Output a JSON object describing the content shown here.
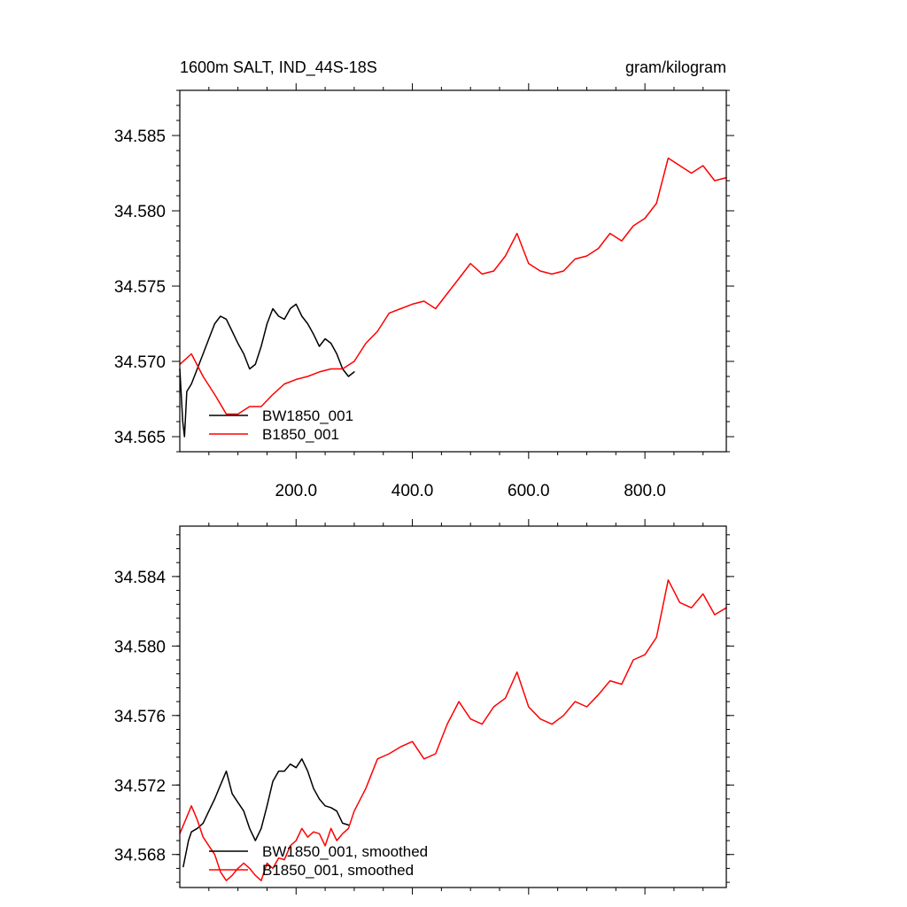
{
  "chart_data": [
    {
      "type": "line",
      "title_left": "1600m SALT, IND_44S-18S",
      "title_right": "gram/kilogram",
      "xlabel": "",
      "ylabel": "",
      "xlim": [
        0,
        940
      ],
      "ylim": [
        34.564,
        34.588
      ],
      "x_ticks": [
        200,
        400,
        600,
        800
      ],
      "x_tick_labels": [
        "200.0",
        "400.0",
        "600.0",
        "800.0"
      ],
      "y_ticks": [
        34.565,
        34.57,
        34.575,
        34.58,
        34.585
      ],
      "y_tick_labels": [
        "34.565",
        "34.570",
        "34.575",
        "34.580",
        "34.585"
      ],
      "grid": false,
      "legend_position": "bottom-left",
      "series": [
        {
          "name": "BW1850_001",
          "color": "#000000",
          "x": [
            0,
            5,
            8,
            12,
            20,
            30,
            40,
            50,
            60,
            70,
            80,
            90,
            100,
            110,
            120,
            130,
            140,
            150,
            160,
            170,
            180,
            190,
            200,
            210,
            220,
            230,
            240,
            250,
            260,
            270,
            280,
            290,
            300
          ],
          "y": [
            34.5695,
            34.566,
            34.565,
            34.568,
            34.5685,
            34.5695,
            34.5705,
            34.5715,
            34.5725,
            34.573,
            34.5728,
            34.572,
            34.5712,
            34.5705,
            34.5695,
            34.5698,
            34.571,
            34.5725,
            34.5735,
            34.573,
            34.5728,
            34.5735,
            34.5738,
            34.573,
            34.5725,
            34.5718,
            34.571,
            34.5715,
            34.5712,
            34.5705,
            34.5695,
            34.569,
            34.5693
          ]
        },
        {
          "name": "B1850_001",
          "color": "#ff0000",
          "x": [
            0,
            20,
            40,
            60,
            80,
            100,
            120,
            140,
            160,
            180,
            200,
            220,
            240,
            260,
            280,
            300,
            320,
            340,
            360,
            380,
            400,
            420,
            440,
            460,
            480,
            500,
            520,
            540,
            560,
            580,
            600,
            620,
            640,
            660,
            680,
            700,
            720,
            740,
            760,
            780,
            800,
            820,
            840,
            860,
            880,
            900,
            920,
            940
          ],
          "y": [
            34.5698,
            34.5705,
            34.569,
            34.5678,
            34.5665,
            34.5665,
            34.567,
            34.567,
            34.5678,
            34.5685,
            34.5688,
            34.569,
            34.5693,
            34.5695,
            34.5695,
            34.57,
            34.5712,
            34.572,
            34.5732,
            34.5735,
            34.5738,
            34.574,
            34.5735,
            34.5745,
            34.5755,
            34.5765,
            34.5758,
            34.576,
            34.577,
            34.5785,
            34.5765,
            34.576,
            34.5758,
            34.576,
            34.5768,
            34.577,
            34.5775,
            34.5785,
            34.578,
            34.579,
            34.5795,
            34.5805,
            34.5835,
            34.583,
            34.5825,
            34.583,
            34.582,
            34.5822
          ]
        }
      ]
    },
    {
      "type": "line",
      "xlabel": "",
      "ylabel": "",
      "xlim": [
        0,
        940
      ],
      "ylim": [
        34.5661,
        34.5869
      ],
      "x_ticks": [
        200,
        400,
        600,
        800
      ],
      "y_ticks": [
        34.568,
        34.572,
        34.576,
        34.58,
        34.584
      ],
      "y_tick_labels": [
        "34.568",
        "34.572",
        "34.576",
        "34.580",
        "34.584"
      ],
      "grid": false,
      "legend_position": "bottom-left",
      "series": [
        {
          "name": "BW1850_001, smoothed",
          "color": "#000000",
          "x": [
            6,
            15,
            20,
            30,
            40,
            50,
            60,
            70,
            80,
            90,
            100,
            110,
            120,
            130,
            140,
            150,
            160,
            170,
            180,
            190,
            200,
            210,
            220,
            230,
            240,
            250,
            260,
            270,
            280,
            290
          ],
          "y": [
            34.5673,
            34.5688,
            34.5693,
            34.5695,
            34.5698,
            34.5705,
            34.5712,
            34.572,
            34.5728,
            34.5715,
            34.571,
            34.5705,
            34.5695,
            34.5688,
            34.5695,
            34.5708,
            34.5722,
            34.5728,
            34.5728,
            34.5732,
            34.573,
            34.5735,
            34.5728,
            34.5718,
            34.5712,
            34.5708,
            34.5707,
            34.5705,
            34.5698,
            34.5697
          ]
        },
        {
          "name": "B1850_001, smoothed",
          "color": "#ff0000",
          "x": [
            0,
            10,
            20,
            30,
            40,
            50,
            60,
            70,
            80,
            90,
            100,
            110,
            120,
            130,
            140,
            150,
            160,
            170,
            180,
            190,
            200,
            210,
            220,
            230,
            240,
            250,
            260,
            270,
            280,
            290,
            300,
            320,
            340,
            360,
            380,
            400,
            420,
            440,
            460,
            480,
            500,
            520,
            540,
            560,
            580,
            600,
            620,
            640,
            660,
            680,
            700,
            720,
            740,
            760,
            780,
            800,
            820,
            840,
            860,
            880,
            900,
            920,
            940
          ],
          "y": [
            34.5692,
            34.57,
            34.5708,
            34.57,
            34.569,
            34.5685,
            34.568,
            34.567,
            34.5665,
            34.5668,
            34.5672,
            34.5675,
            34.5672,
            34.5668,
            34.5665,
            34.5675,
            34.5672,
            34.5678,
            34.5677,
            34.5685,
            34.5688,
            34.5695,
            34.569,
            34.5693,
            34.5692,
            34.5685,
            34.5695,
            34.5688,
            34.5692,
            34.5695,
            34.5705,
            34.5718,
            34.5735,
            34.5738,
            34.5742,
            34.5745,
            34.5735,
            34.5738,
            34.5755,
            34.5768,
            34.5758,
            34.5755,
            34.5765,
            34.577,
            34.5785,
            34.5765,
            34.5758,
            34.5755,
            34.576,
            34.5768,
            34.5765,
            34.5772,
            34.578,
            34.5778,
            34.5792,
            34.5795,
            34.5805,
            34.5838,
            34.5825,
            34.5822,
            34.583,
            34.5818,
            34.5822
          ]
        }
      ]
    }
  ]
}
